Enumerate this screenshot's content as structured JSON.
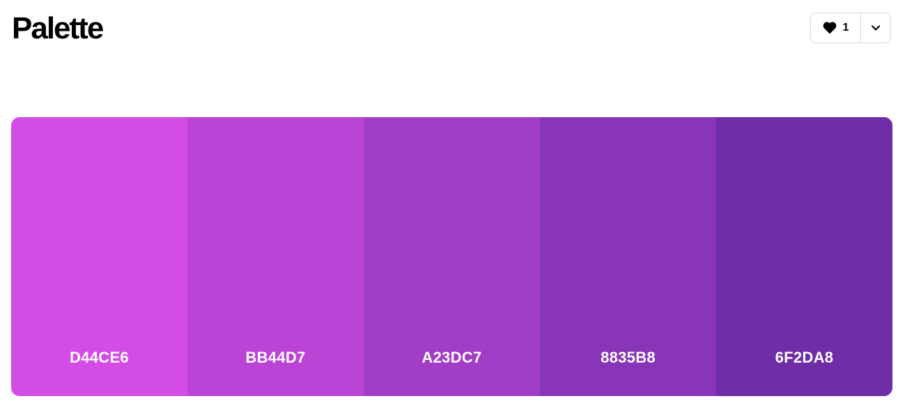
{
  "header": {
    "title": "Palette"
  },
  "actions": {
    "like_count": "1",
    "like_icon": "heart-icon",
    "more_icon": "chevron-down-icon"
  },
  "palette": {
    "swatches": [
      {
        "code": "D44CE6",
        "color": "#D44CE6"
      },
      {
        "code": "BB44D7",
        "color": "#BB44D7"
      },
      {
        "code": "A23DC7",
        "color": "#A23DC7"
      },
      {
        "code": "8835B8",
        "color": "#8835B8"
      },
      {
        "code": "6F2DA8",
        "color": "#6F2DA8"
      }
    ]
  }
}
